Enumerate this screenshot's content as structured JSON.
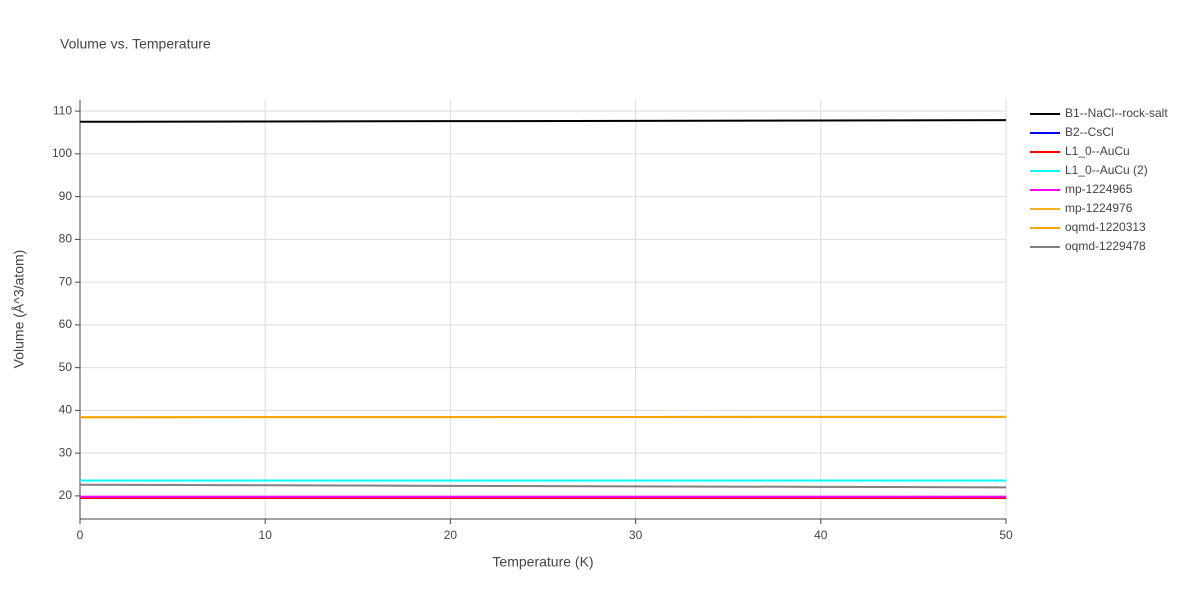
{
  "chart_data": {
    "type": "line",
    "title": "Volume vs. Temperature",
    "xlabel": "Temperature (K)",
    "ylabel": "Volume (Å^3/atom)",
    "x": [
      0,
      10,
      20,
      30,
      40,
      50
    ],
    "xlim": [
      0,
      50
    ],
    "xticks": [
      0,
      10,
      20,
      30,
      40,
      50
    ],
    "ylim": [
      14.6,
      112.6
    ],
    "yticks": [
      20,
      30,
      40,
      50,
      60,
      70,
      80,
      90,
      100,
      110
    ],
    "grid": true,
    "legend": "right",
    "series": [
      {
        "name": "B1--NaCl--rock-salt",
        "color": "#000000",
        "values": [
          107.5,
          107.57,
          107.65,
          107.72,
          107.8,
          107.9
        ]
      },
      {
        "name": "B2--CsCl",
        "color": "#0000ff",
        "values": [
          19.6,
          19.6,
          19.6,
          19.6,
          19.6,
          19.6
        ]
      },
      {
        "name": "L1_0--AuCu",
        "color": "#ff0000",
        "values": [
          19.5,
          19.5,
          19.5,
          19.5,
          19.5,
          19.5
        ]
      },
      {
        "name": "L1_0--AuCu (2)",
        "color": "#00ffff",
        "values": [
          23.6,
          23.6,
          23.6,
          23.6,
          23.6,
          23.6
        ]
      },
      {
        "name": "mp-1224965",
        "color": "#ff00ff",
        "values": [
          19.8,
          19.8,
          19.8,
          19.8,
          19.8,
          19.8
        ]
      },
      {
        "name": "mp-1224976",
        "color": "#f0b020",
        "values": [
          38.4,
          38.42,
          38.44,
          38.46,
          38.48,
          38.5
        ]
      },
      {
        "name": "oqmd-1220313",
        "color": "#ffa500",
        "values": [
          38.4,
          38.42,
          38.44,
          38.46,
          38.48,
          38.5
        ]
      },
      {
        "name": "oqmd-1229478",
        "color": "#808080",
        "values": [
          22.6,
          22.48,
          22.36,
          22.24,
          22.12,
          22.0
        ]
      }
    ]
  }
}
